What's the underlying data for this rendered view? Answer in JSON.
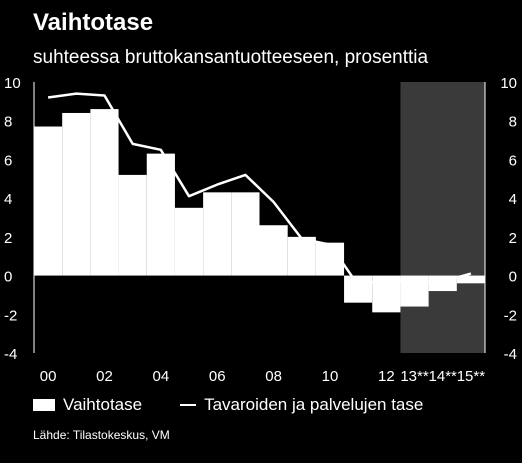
{
  "title": "Vaihtotase",
  "subtitle": "suhteessa bruttokansantuotteeseen, prosenttia",
  "source": "Lähde: Tilastokeskus, VM",
  "chart_data": {
    "type": "bar",
    "years": [
      "2000",
      "2001",
      "2002",
      "2003",
      "2004",
      "2005",
      "2006",
      "2007",
      "2008",
      "2009",
      "2010",
      "2011",
      "2012",
      "2013",
      "2014",
      "2015"
    ],
    "x_tick_labels": [
      "00",
      "02",
      "04",
      "06",
      "08",
      "10",
      "12",
      "13**",
      "14**",
      "15**"
    ],
    "y_ticks": [
      -4,
      -2,
      0,
      2,
      4,
      6,
      8,
      10
    ],
    "ylim": [
      -4,
      10
    ],
    "forecast_start": "2013",
    "series": [
      {
        "name": "Vaihtotase",
        "type": "bar",
        "values": [
          7.7,
          8.4,
          8.6,
          5.2,
          6.3,
          3.5,
          4.3,
          4.3,
          2.6,
          2.0,
          1.7,
          -1.4,
          -1.9,
          -1.6,
          -0.8,
          -0.4
        ]
      },
      {
        "name": "Tavaroiden ja palvelujen tase",
        "type": "line",
        "values": [
          9.2,
          9.4,
          9.3,
          6.8,
          6.5,
          4.1,
          4.7,
          5.2,
          3.8,
          1.9,
          1.6,
          -0.5,
          -0.2,
          -0.3,
          -0.3,
          0.1
        ]
      }
    ],
    "grid": false,
    "legend_position": "bottom"
  },
  "colors": {
    "background": "#000000",
    "bars": "#ffffff",
    "line": "#ffffff",
    "forecast_shade": "#3a3a3a"
  }
}
